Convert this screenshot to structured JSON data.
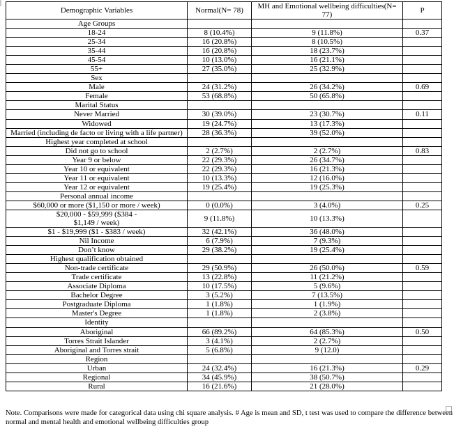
{
  "colors": {
    "text": "#000000",
    "table_border": "#000000",
    "handle_gray": "#a6a6a6",
    "background": "#ffffff"
  },
  "icons": {
    "table_resize_handle": "empty-square"
  },
  "table": {
    "headers": [
      "Demographic Variables",
      "Normal(N= 78)",
      "MH and Emotional wellbeing difficulties(N= 77)",
      "P"
    ],
    "rows": [
      {
        "type": "section",
        "label": "Age Groups",
        "normal": "",
        "mh": "",
        "p": ""
      },
      {
        "type": "data",
        "label": "18-24",
        "normal": "8 (10.4%)",
        "mh": "9 (11.8%)",
        "p": "0.37"
      },
      {
        "type": "data",
        "label": "25-34",
        "normal": "16 (20.8%)",
        "mh": "8 (10.5%)",
        "p": ""
      },
      {
        "type": "data",
        "label": "35-44",
        "normal": "16 (20.8%)",
        "mh": "18 (23.7%)",
        "p": ""
      },
      {
        "type": "data",
        "label": "45-54",
        "normal": "10 (13.0%)",
        "mh": "16 (21.1%)",
        "p": ""
      },
      {
        "type": "data",
        "label": "55+",
        "normal": "27 (35.0%)",
        "mh": "25 (32.9%)",
        "p": ""
      },
      {
        "type": "section",
        "label": "Sex",
        "normal": "",
        "mh": "",
        "p": ""
      },
      {
        "type": "data",
        "label": "Male",
        "normal": "24 (31.2%)",
        "mh": "26 (34.2%)",
        "p": "0.69"
      },
      {
        "type": "data",
        "label": "Female",
        "normal": "53 (68.8%)",
        "mh": "50 (65.8%)",
        "p": ""
      },
      {
        "type": "section",
        "label": "Marital Status",
        "normal": "",
        "mh": "",
        "p": ""
      },
      {
        "type": "data",
        "label": "Never Married",
        "normal": "30 (39.0%)",
        "mh": "23 (30.7%)",
        "p": "0.11"
      },
      {
        "type": "data",
        "label": "Widowed",
        "normal": "19 (24.7%)",
        "mh": "13 (17.3%)",
        "p": ""
      },
      {
        "type": "data",
        "label": "Married (including de facto or living with a life partner)",
        "normal": "28 (36.3%)",
        "mh": "39 (52.0%)",
        "p": ""
      },
      {
        "type": "section",
        "label": "Highest year completed at school",
        "normal": "",
        "mh": "",
        "p": ""
      },
      {
        "type": "data",
        "label": "Did not go to school",
        "normal": "2 (2.7%)",
        "mh": "2 (2.7%)",
        "p": "0.83"
      },
      {
        "type": "data",
        "label": "Year 9 or below",
        "normal": "22 (29.3%)",
        "mh": "26 (34.7%)",
        "p": ""
      },
      {
        "type": "data",
        "label": "Year 10 or equivalent",
        "normal": "22 (29.3%)",
        "mh": "16 (21.3%)",
        "p": ""
      },
      {
        "type": "data",
        "label": "Year 11 or equivalent",
        "normal": "10 (13.3%)",
        "mh": "12 (16.0%)",
        "p": ""
      },
      {
        "type": "data",
        "label": "Year 12 or equivalent",
        "normal": "19 (25.4%)",
        "mh": "19 (25.3%)",
        "p": ""
      },
      {
        "type": "section",
        "label": "Personal annual income",
        "normal": "",
        "mh": "",
        "p": ""
      },
      {
        "type": "data",
        "label": "$60,000 or more ($1,150 or more / week)",
        "normal": "0 (0.0%)",
        "mh": "3 (4.0%)",
        "p": "0.25"
      },
      {
        "type": "data",
        "label": "$20,000 - $59,999 ($384 -\n$1,149 / week)",
        "normal": "9 (11.8%)",
        "mh": "10 (13.3%)",
        "p": ""
      },
      {
        "type": "data",
        "label": "$1 - $19,999 ($1 - $383 / week)",
        "normal": "32 (42.1%)",
        "mh": "36 (48.0%)",
        "p": ""
      },
      {
        "type": "data",
        "label": "Nil Income",
        "normal": "6 (7.9%)",
        "mh": "7 (9.3%)",
        "p": ""
      },
      {
        "type": "data",
        "label": "Don’t know",
        "normal": "29 (38.2%)",
        "mh": "19 (25.4%)",
        "p": ""
      },
      {
        "type": "section",
        "label": "Highest qualification obtained",
        "normal": "",
        "mh": "",
        "p": ""
      },
      {
        "type": "data",
        "label": "Non-trade certificate",
        "normal": "29 (50.9%)",
        "mh": "26 (50.0%)",
        "p": "0.59"
      },
      {
        "type": "data",
        "label": "Trade certificate",
        "normal": "13 (22.8%)",
        "mh": "11 (21.2%)",
        "p": ""
      },
      {
        "type": "data",
        "label": "Associate Diploma",
        "normal": "10 (17.5%)",
        "mh": "5 (9.6%)",
        "p": ""
      },
      {
        "type": "data",
        "label": "Bachelor Degree",
        "normal": "3 (5.2%)",
        "mh": "7 (13.5%)",
        "p": ""
      },
      {
        "type": "data",
        "label": "Postgraduate Diploma",
        "normal": "1 (1.8%)",
        "mh": "1 (1.9%)",
        "p": ""
      },
      {
        "type": "data",
        "label": "Master's Degree",
        "normal": "1 (1.8%)",
        "mh": "2 (3.8%)",
        "p": ""
      },
      {
        "type": "section",
        "label": "Identity",
        "normal": "",
        "mh": "",
        "p": ""
      },
      {
        "type": "data",
        "label": "Aboriginal",
        "normal": "66 (89.2%)",
        "mh": "64 (85.3%)",
        "p": "0.50"
      },
      {
        "type": "data",
        "label": "Torres Strait Islander",
        "normal": "3 (4.1%)",
        "mh": "2 (2.7%)",
        "p": ""
      },
      {
        "type": "data",
        "label": "Aboriginal and Torres strait",
        "normal": "5 (6.8%)",
        "mh": "9 (12.0)",
        "p": ""
      },
      {
        "type": "section",
        "label": "Region",
        "normal": "",
        "mh": "",
        "p": ""
      },
      {
        "type": "data",
        "label": "Urban",
        "normal": "24 (32.4%)",
        "mh": "16 (21.3%)",
        "p": "0.29"
      },
      {
        "type": "data",
        "label": "Regional",
        "normal": "34 (45.9%)",
        "mh": "38 (50.7%)",
        "p": ""
      },
      {
        "type": "data",
        "label": "Rural",
        "normal": "16 (21.6%)",
        "mh": "21 (28.0%)",
        "p": ""
      }
    ]
  },
  "note": {
    "text": "Note. Comparisons were made for categorical data using chi square analysis. # Age is mean and SD, t test was used to compare the difference between normal and mental health and emotional wellbeing difficulties group"
  }
}
